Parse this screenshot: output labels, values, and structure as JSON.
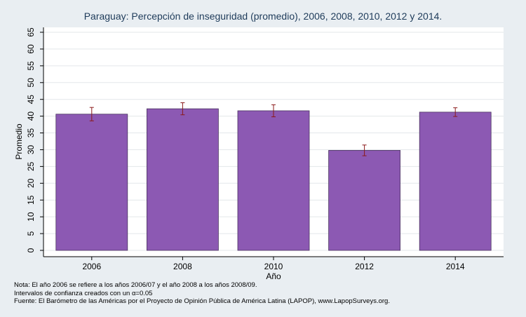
{
  "chart_data": {
    "type": "bar",
    "title": "Paraguay: Percepción de inseguridad (promedio), 2006, 2008, 2010, 2012 y 2014.",
    "xlabel": "Año",
    "ylabel": "Promedio",
    "categories": [
      "2006",
      "2008",
      "2010",
      "2012",
      "2014"
    ],
    "values": [
      40.6,
      42.2,
      41.6,
      29.8,
      41.2
    ],
    "ci_low": [
      38.6,
      40.4,
      39.8,
      28.2,
      39.9
    ],
    "ci_high": [
      42.6,
      44.0,
      43.4,
      31.4,
      42.5
    ],
    "ylim": [
      0,
      65
    ],
    "yticks": [
      0,
      5,
      10,
      15,
      20,
      25,
      30,
      35,
      40,
      45,
      50,
      55,
      60,
      65
    ],
    "grid": true,
    "bar_color": "#8c59b3",
    "error_bar_color": "#8b1a1a"
  },
  "notes": {
    "line1": "Nota: El año 2006 se refiere a los años 2006/07 y el año 2008 a los años 2008/09.",
    "line2": "Intervalos de confianza creados con un α=0.05",
    "line3": "Fuente: El Barómetro de las Américas por el Proyecto de Opinión Pública de América Latina (LAPOP), www.LapopSurveys.org."
  }
}
